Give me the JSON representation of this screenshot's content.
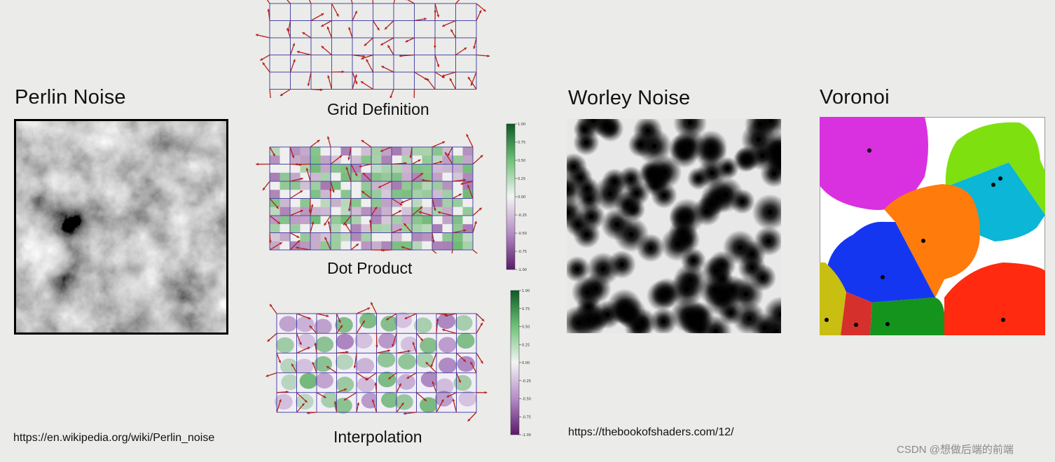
{
  "perlin": {
    "title": "Perlin Noise",
    "link": "https://en.wikipedia.org/wiki/Perlin_noise"
  },
  "perlin_steps": {
    "grid_caption": "Grid Definition",
    "dot_caption": "Dot Product",
    "interp_caption": "Interpolation",
    "colorbar_ticks": [
      "1.00",
      "0.75",
      "0.50",
      "0.25",
      "0.00",
      "-0.25",
      "-0.50",
      "-0.75",
      "-1.00"
    ]
  },
  "worley": {
    "title": "Worley Noise",
    "link": "https://thebookofshaders.com/12/"
  },
  "voronoi": {
    "title": "Voronoi",
    "colors": [
      "#d930e0",
      "#7fe010",
      "#0bb6d6",
      "#ff7b0b",
      "#1536f0",
      "#c9bf12",
      "#d6302c",
      "#14941c",
      "#ff2a0f"
    ]
  },
  "watermark": "CSDN @想做后端的前端"
}
